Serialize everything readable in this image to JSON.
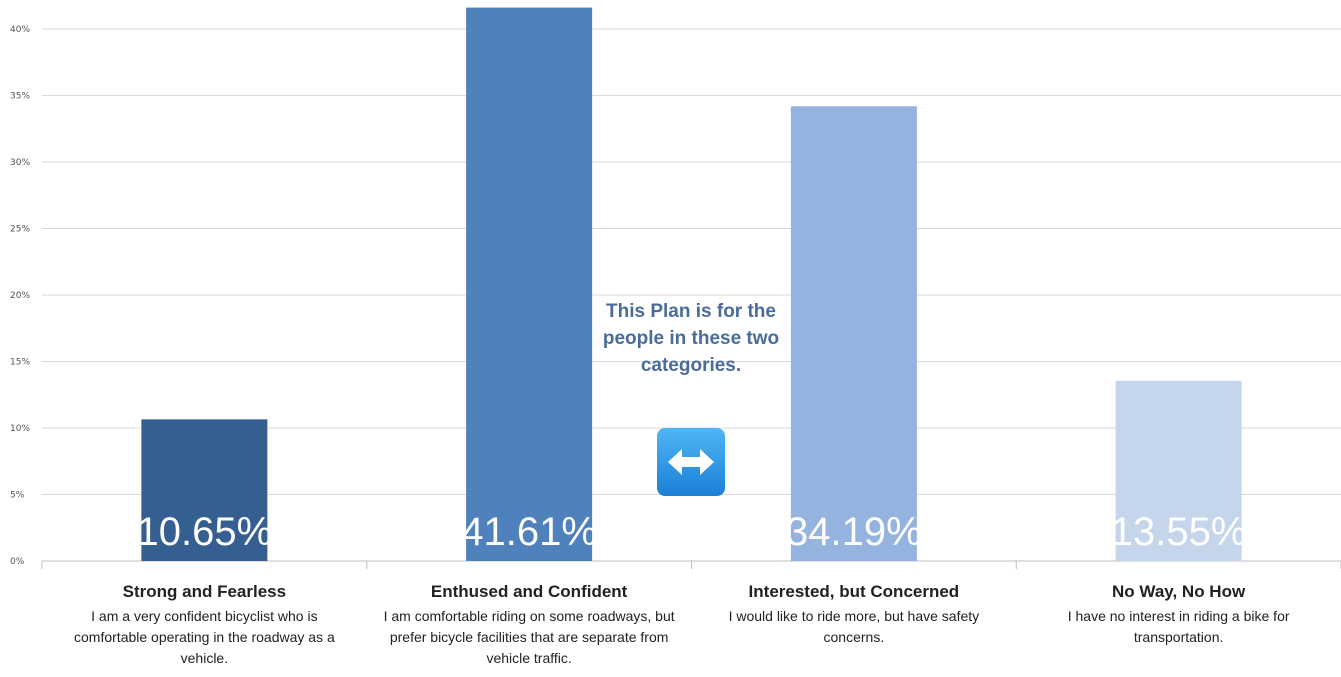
{
  "chart_data": {
    "type": "bar",
    "categories": [
      "Strong and Fearless",
      "Enthused and Confident",
      "Interested, but Concerned",
      "No Way, No How"
    ],
    "values": [
      10.65,
      41.61,
      34.19,
      13.55
    ],
    "value_labels": [
      "10.65%",
      "41.61%",
      "34.19%",
      "13.55%"
    ],
    "descriptions": [
      "I am a very confident bicyclist who is comfortable operating in the roadway as a vehicle.",
      "I am comfortable riding on some roadways, but prefer bicycle facilities that are separate from vehicle traffic.",
      "I would like to ride more, but have safety concerns.",
      "I have no interest in riding a bike for transportation."
    ],
    "bar_colors": [
      "#365f91",
      "#4f81bd",
      "#95b3df",
      "#c5d5ec"
    ],
    "y_ticks": [
      "0%",
      "5%",
      "10%",
      "15%",
      "20%",
      "25%",
      "30%",
      "35%",
      "40%"
    ],
    "ylim": [
      0,
      40
    ],
    "grid": true,
    "annotation": "This Plan is for the people in these two categories.",
    "annotation_icon": "left-right-arrow-icon",
    "annotation_color": "#4a6c9b"
  }
}
